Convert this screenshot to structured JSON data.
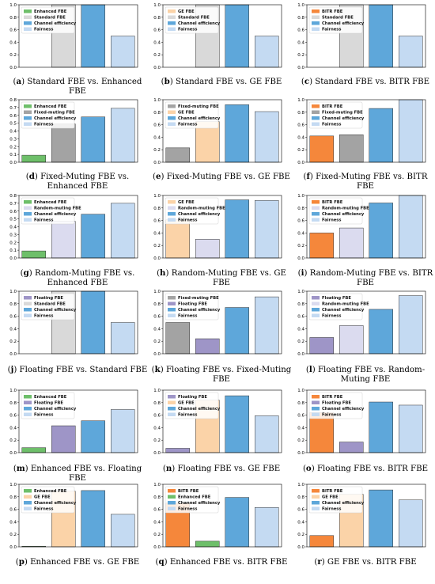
{
  "colors": {
    "Standard FBE": "#d9d9d9",
    "Enhanced FBE": "#6ebf6a",
    "GE FBE": "#fbd3a8",
    "BITR FBE": "#f5873b",
    "Fixed-muting FBE": "#a3a3a3",
    "Random-muting FBE": "#dbdbef",
    "Floating FBE": "#9e95c7",
    "Channel efficiency": "#5ea7da",
    "Fairness": "#c4daf2"
  },
  "chart_data": [
    {
      "id": "a",
      "type": "bar",
      "letter": "a",
      "caption": "Standard FBE vs. Enhanced FBE",
      "ylim": [
        0,
        1.0
      ],
      "yticks": [
        "0.0",
        "0.2",
        "0.4",
        "0.6",
        "0.8",
        "1.0"
      ],
      "series": [
        {
          "name": "Enhanced FBE",
          "value": 0.0
        },
        {
          "name": "Standard FBE",
          "value": 1.0
        },
        {
          "name": "Channel efficiency",
          "value": 1.0
        },
        {
          "name": "Fairness",
          "value": 0.5
        }
      ]
    },
    {
      "id": "b",
      "type": "bar",
      "letter": "b",
      "caption": "Standard FBE vs. GE FBE",
      "ylim": [
        0,
        1.0
      ],
      "yticks": [
        "0.0",
        "0.2",
        "0.4",
        "0.6",
        "0.8",
        "1.0"
      ],
      "series": [
        {
          "name": "GE FBE",
          "value": 0.0
        },
        {
          "name": "Standard FBE",
          "value": 1.0
        },
        {
          "name": "Channel efficiency",
          "value": 1.0
        },
        {
          "name": "Fairness",
          "value": 0.5
        }
      ]
    },
    {
      "id": "c",
      "type": "bar",
      "letter": "c",
      "caption": "Standard FBE vs. BITR FBE",
      "ylim": [
        0,
        1.0
      ],
      "yticks": [
        "0.0",
        "0.2",
        "0.4",
        "0.6",
        "0.8",
        "1.0"
      ],
      "series": [
        {
          "name": "BITR FBE",
          "value": 0.0
        },
        {
          "name": "Standard FBE",
          "value": 1.0
        },
        {
          "name": "Channel efficiency",
          "value": 1.0
        },
        {
          "name": "Fairness",
          "value": 0.5
        }
      ]
    },
    {
      "id": "d",
      "type": "bar",
      "letter": "d",
      "caption": "Fixed-Muting FBE vs. Enhanced FBE",
      "ylim": [
        0,
        0.8
      ],
      "yticks": [
        "0.0",
        "0.1",
        "0.2",
        "0.3",
        "0.4",
        "0.5",
        "0.6",
        "0.7",
        "0.8"
      ],
      "series": [
        {
          "name": "Enhanced FBE",
          "value": 0.09
        },
        {
          "name": "Fixed-muting FBE",
          "value": 0.49
        },
        {
          "name": "Channel efficiency",
          "value": 0.58
        },
        {
          "name": "Fairness",
          "value": 0.69
        }
      ]
    },
    {
      "id": "e",
      "type": "bar",
      "letter": "e",
      "caption": "Fixed-Muting FBE vs. GE FBE",
      "ylim": [
        0,
        1.0
      ],
      "yticks": [
        "0.0",
        "0.2",
        "0.4",
        "0.6",
        "0.8",
        "1.0"
      ],
      "series": [
        {
          "name": "Fixed-muting FBE",
          "value": 0.23
        },
        {
          "name": "GE FBE",
          "value": 0.65
        },
        {
          "name": "Channel efficiency",
          "value": 0.92
        },
        {
          "name": "Fairness",
          "value": 0.81
        }
      ]
    },
    {
      "id": "f",
      "type": "bar",
      "letter": "f",
      "caption": "Fixed-Muting FBE vs. BITR FBE",
      "ylim": [
        0,
        1.0
      ],
      "yticks": [
        "0.0",
        "0.2",
        "0.4",
        "0.6",
        "0.8",
        "1.0"
      ],
      "series": [
        {
          "name": "BITR FBE",
          "value": 0.42
        },
        {
          "name": "Fixed-muting FBE",
          "value": 0.44
        },
        {
          "name": "Channel efficiency",
          "value": 0.86
        },
        {
          "name": "Fairness",
          "value": 1.0
        }
      ]
    },
    {
      "id": "g",
      "type": "bar",
      "letter": "g",
      "caption": "Random-Muting FBE vs. Enhanced FBE",
      "ylim": [
        0,
        0.8
      ],
      "yticks": [
        "0.0",
        "0.1",
        "0.2",
        "0.3",
        "0.4",
        "0.5",
        "0.6",
        "0.7",
        "0.8"
      ],
      "series": [
        {
          "name": "Enhanced FBE",
          "value": 0.09
        },
        {
          "name": "Random-muting FBE",
          "value": 0.47
        },
        {
          "name": "Channel efficiency",
          "value": 0.56
        },
        {
          "name": "Fairness",
          "value": 0.7
        }
      ]
    },
    {
      "id": "h",
      "type": "bar",
      "letter": "h",
      "caption": "Random-Muting FBE vs. GE FBE",
      "ylim": [
        0,
        1.0
      ],
      "yticks": [
        "0.0",
        "0.2",
        "0.4",
        "0.6",
        "0.8",
        "1.0"
      ],
      "series": [
        {
          "name": "GE FBE",
          "value": 0.61
        },
        {
          "name": "Random-muting FBE",
          "value": 0.3
        },
        {
          "name": "Channel efficiency",
          "value": 0.93
        },
        {
          "name": "Fairness",
          "value": 0.92
        }
      ]
    },
    {
      "id": "i",
      "type": "bar",
      "letter": "i",
      "caption": "Random-Muting FBE vs. BITR FBE",
      "ylim": [
        0,
        1.0
      ],
      "yticks": [
        "0.0",
        "0.2",
        "0.4",
        "0.6",
        "0.8",
        "1.0"
      ],
      "series": [
        {
          "name": "BITR FBE",
          "value": 0.4
        },
        {
          "name": "Random-muting FBE",
          "value": 0.48
        },
        {
          "name": "Channel efficiency",
          "value": 0.88
        },
        {
          "name": "Fairness",
          "value": 1.0
        }
      ]
    },
    {
      "id": "j",
      "type": "bar",
      "letter": "j",
      "caption": "Floating FBE vs. Standard FBE",
      "ylim": [
        0,
        1.0
      ],
      "yticks": [
        "0.0",
        "0.2",
        "0.4",
        "0.6",
        "0.8",
        "1.0"
      ],
      "series": [
        {
          "name": "Floating FBE",
          "value": 0.0
        },
        {
          "name": "Standard FBE",
          "value": 1.0
        },
        {
          "name": "Channel efficiency",
          "value": 1.0
        },
        {
          "name": "Fairness",
          "value": 0.5
        }
      ]
    },
    {
      "id": "k",
      "type": "bar",
      "letter": "k",
      "caption": "Floating FBE vs. Fixed-Muting FBE",
      "ylim": [
        0,
        1.0
      ],
      "yticks": [
        "0.0",
        "0.2",
        "0.4",
        "0.6",
        "0.8",
        "1.0"
      ],
      "series": [
        {
          "name": "Fixed-muting FBE",
          "value": 0.5
        },
        {
          "name": "Floating FBE",
          "value": 0.24
        },
        {
          "name": "Channel efficiency",
          "value": 0.74
        },
        {
          "name": "Fairness",
          "value": 0.91
        }
      ]
    },
    {
      "id": "l",
      "type": "bar",
      "letter": "l",
      "caption": "Floating FBE vs. Random-Muting FBE",
      "ylim": [
        0,
        1.0
      ],
      "yticks": [
        "0.0",
        "0.2",
        "0.4",
        "0.6",
        "0.8",
        "1.0"
      ],
      "series": [
        {
          "name": "Floating FBE",
          "value": 0.26
        },
        {
          "name": "Random-muting FBE",
          "value": 0.45
        },
        {
          "name": "Channel efficiency",
          "value": 0.71
        },
        {
          "name": "Fairness",
          "value": 0.93
        }
      ]
    },
    {
      "id": "m",
      "type": "bar",
      "letter": "m",
      "caption": "Enhanced FBE vs. Floating FBE",
      "ylim": [
        0,
        1.0
      ],
      "yticks": [
        "0.0",
        "0.2",
        "0.4",
        "0.6",
        "0.8",
        "1.0"
      ],
      "series": [
        {
          "name": "Enhanced FBE",
          "value": 0.08
        },
        {
          "name": "Floating FBE",
          "value": 0.43
        },
        {
          "name": "Channel efficiency",
          "value": 0.51
        },
        {
          "name": "Fairness",
          "value": 0.69
        }
      ]
    },
    {
      "id": "n",
      "type": "bar",
      "letter": "n",
      "caption": "Floating FBE vs. GE FBE",
      "ylim": [
        0,
        1.0
      ],
      "yticks": [
        "0.0",
        "0.2",
        "0.4",
        "0.6",
        "0.8",
        "1.0"
      ],
      "series": [
        {
          "name": "Floating FBE",
          "value": 0.07
        },
        {
          "name": "GE FBE",
          "value": 0.84
        },
        {
          "name": "Channel efficiency",
          "value": 0.91
        },
        {
          "name": "Fairness",
          "value": 0.59
        }
      ]
    },
    {
      "id": "o",
      "type": "bar",
      "letter": "o",
      "caption": "Floating FBE vs. BITR FBE",
      "ylim": [
        0,
        1.0
      ],
      "yticks": [
        "0.0",
        "0.2",
        "0.4",
        "0.6",
        "0.8",
        "1.0"
      ],
      "series": [
        {
          "name": "BITR FBE",
          "value": 0.64
        },
        {
          "name": "Floating FBE",
          "value": 0.17
        },
        {
          "name": "Channel efficiency",
          "value": 0.81
        },
        {
          "name": "Fairness",
          "value": 0.76
        }
      ]
    },
    {
      "id": "p",
      "type": "bar",
      "letter": "p",
      "caption": "Enhanced FBE vs. GE FBE",
      "ylim": [
        0,
        1.0
      ],
      "yticks": [
        "0.0",
        "0.2",
        "0.4",
        "0.6",
        "0.8",
        "1.0"
      ],
      "series": [
        {
          "name": "Enhanced FBE",
          "value": 0.01
        },
        {
          "name": "GE FBE",
          "value": 0.89
        },
        {
          "name": "Channel efficiency",
          "value": 0.9
        },
        {
          "name": "Fairness",
          "value": 0.52
        }
      ]
    },
    {
      "id": "q",
      "type": "bar",
      "letter": "q",
      "caption": "Enhanced FBE vs. BITR FBE",
      "ylim": [
        0,
        1.0
      ],
      "yticks": [
        "0.0",
        "0.2",
        "0.4",
        "0.6",
        "0.8",
        "1.0"
      ],
      "series": [
        {
          "name": "BITR FBE",
          "value": 0.7
        },
        {
          "name": "Enhanced FBE",
          "value": 0.09
        },
        {
          "name": "Channel efficiency",
          "value": 0.79
        },
        {
          "name": "Fairness",
          "value": 0.63
        }
      ]
    },
    {
      "id": "r",
      "type": "bar",
      "letter": "r",
      "caption": "GE FBE vs. BITR FBE",
      "ylim": [
        0,
        1.0
      ],
      "yticks": [
        "0.0",
        "0.2",
        "0.4",
        "0.6",
        "0.8",
        "1.0"
      ],
      "series": [
        {
          "name": "BITR FBE",
          "value": 0.18
        },
        {
          "name": "GE FBE",
          "value": 0.84
        },
        {
          "name": "Channel efficiency",
          "value": 0.91
        },
        {
          "name": "Fairness",
          "value": 0.75
        }
      ]
    }
  ]
}
